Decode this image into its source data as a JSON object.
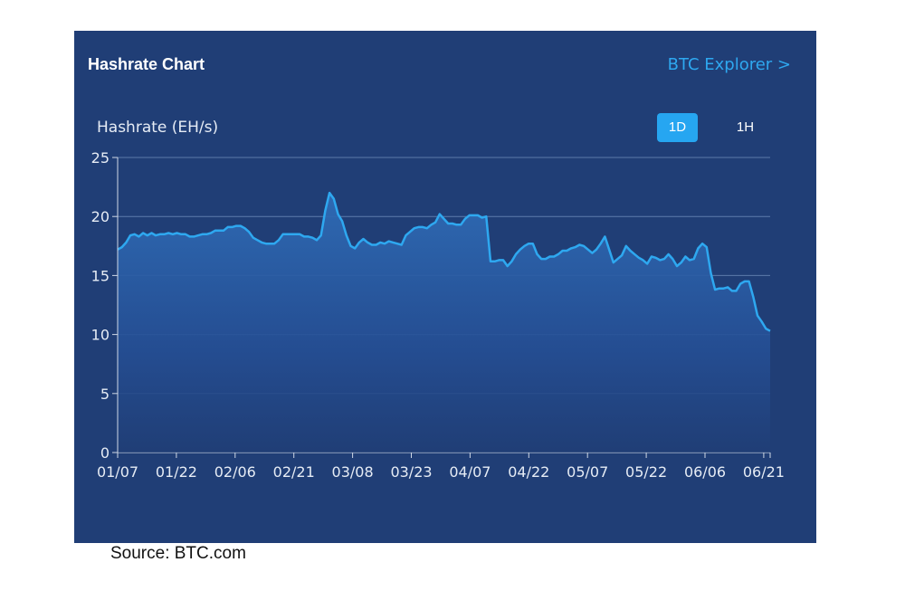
{
  "header": {
    "title": "Hashrate Chart",
    "explorer_link": "BTC Explorer >"
  },
  "controls": {
    "interval_1d": "1D",
    "interval_1h": "1H",
    "selected": "1D"
  },
  "source": "Source: BTC.com",
  "colors": {
    "panel_bg": "#203e76",
    "line": "#2ea8f0",
    "accent_button": "#26a6f1"
  },
  "chart_data": {
    "type": "area",
    "title": "Hashrate Chart",
    "ylabel": "Hashrate (EH/s)",
    "xlabel": "",
    "ylim": [
      0,
      25
    ],
    "yticks": [
      0,
      5,
      10,
      15,
      20,
      25
    ],
    "xticks": [
      "01/07",
      "01/22",
      "02/06",
      "02/21",
      "03/08",
      "03/23",
      "04/07",
      "04/22",
      "05/07",
      "05/22",
      "06/06",
      "06/21"
    ],
    "grid": true,
    "x_start": "01/07",
    "x_end": "06/23",
    "series": [
      {
        "values": [
          17.2,
          17.4,
          17.8,
          18.4,
          18.5,
          18.3,
          18.6,
          18.4,
          18.6,
          18.4,
          18.5,
          18.5,
          18.6,
          18.5,
          18.6,
          18.5,
          18.5,
          18.3,
          18.3,
          18.4,
          18.5,
          18.5,
          18.6,
          18.8,
          18.8,
          18.8,
          19.1,
          19.1,
          19.2,
          19.2,
          19.0,
          18.7,
          18.2,
          18.0,
          17.8,
          17.7,
          17.7,
          17.7,
          18.0,
          18.5,
          18.5,
          18.5,
          18.5,
          18.5,
          18.3,
          18.3,
          18.2,
          18.0,
          18.4,
          20.5,
          22.0,
          21.5,
          20.2,
          19.6,
          18.4,
          17.5,
          17.3,
          17.8,
          18.1,
          17.8,
          17.6,
          17.6,
          17.8,
          17.7,
          17.9,
          17.8,
          17.7,
          17.6,
          18.4,
          18.7,
          19.0,
          19.1,
          19.1,
          19.0,
          19.3,
          19.5,
          20.2,
          19.8,
          19.4,
          19.4,
          19.3,
          19.3,
          19.8,
          20.1,
          20.1,
          20.1,
          19.9,
          20.0,
          16.2,
          16.2,
          16.3,
          16.3,
          15.8,
          16.2,
          16.8,
          17.2,
          17.5,
          17.7,
          17.7,
          16.8,
          16.4,
          16.4,
          16.6,
          16.6,
          16.8,
          17.1,
          17.1,
          17.3,
          17.4,
          17.6,
          17.5,
          17.2,
          16.9,
          17.2,
          17.7,
          18.3,
          17.2,
          16.1,
          16.4,
          16.7,
          17.5,
          17.1,
          16.8,
          16.5,
          16.3,
          16.0,
          16.6,
          16.5,
          16.3,
          16.4,
          16.8,
          16.4,
          15.8,
          16.1,
          16.6,
          16.3,
          16.4,
          17.3,
          17.7,
          17.4,
          15.2,
          13.8,
          13.9,
          13.9,
          14.0,
          13.7,
          13.7,
          14.3,
          14.5,
          14.5,
          13.2,
          11.6,
          11.1,
          10.5,
          10.3
        ]
      }
    ]
  }
}
